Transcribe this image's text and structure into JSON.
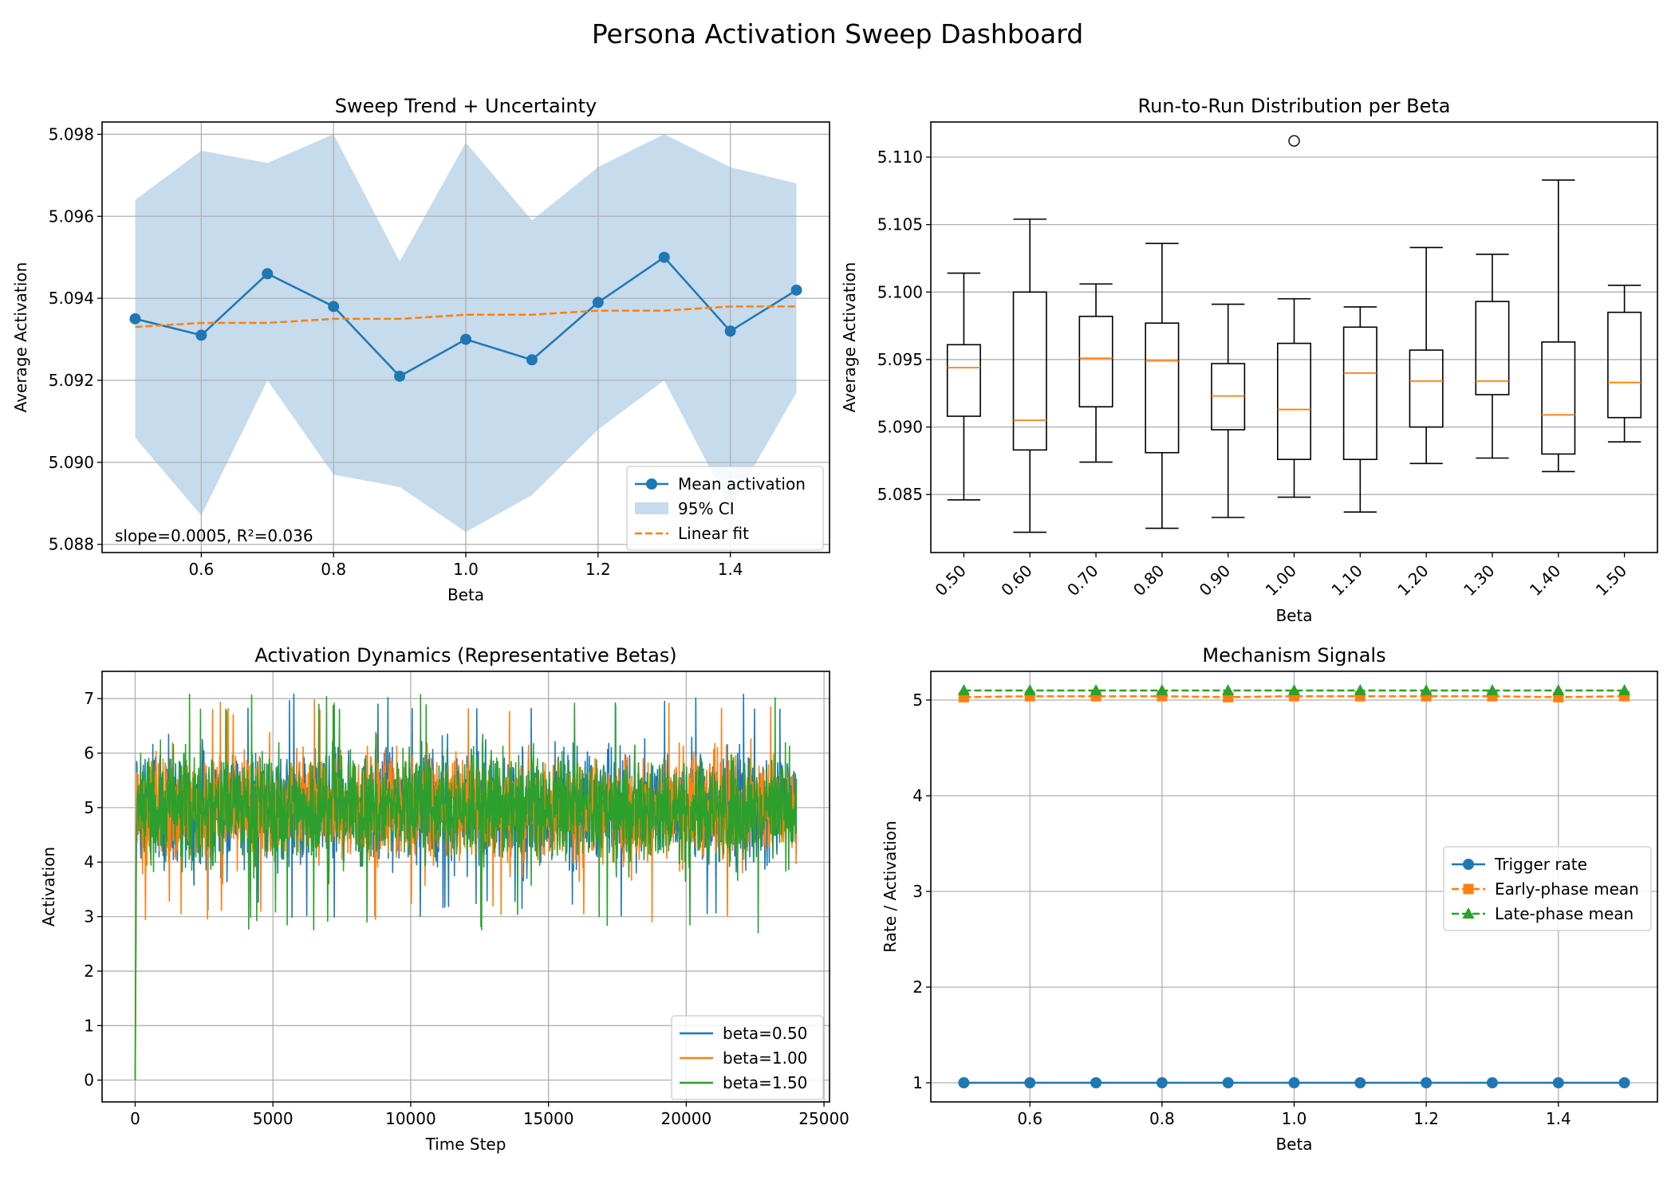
{
  "figure": {
    "title": "Persona Activation Sweep Dashboard"
  },
  "colors": {
    "blue": "#1f77b4",
    "orange": "#ff7f0e",
    "green": "#2ca02c",
    "ci_fill": "#c6dbec",
    "grid": "#b0b0b0"
  },
  "chart_data": [
    {
      "type": "line",
      "title": "Sweep Trend + Uncertainty",
      "xlabel": "Beta",
      "ylabel": "Average Activation",
      "xlim": [
        0.45,
        1.55
      ],
      "ylim": [
        5.0878,
        5.0983
      ],
      "xticks": [
        0.6,
        0.8,
        1.0,
        1.2,
        1.4
      ],
      "xticklabels": [
        "0.6",
        "0.8",
        "1.0",
        "1.2",
        "1.4"
      ],
      "yticks": [
        5.088,
        5.09,
        5.092,
        5.094,
        5.096,
        5.098
      ],
      "yticklabels": [
        "5.088",
        "5.090",
        "5.092",
        "5.094",
        "5.096",
        "5.098"
      ],
      "x": [
        0.5,
        0.6,
        0.7,
        0.8,
        0.9,
        1.0,
        1.1,
        1.2,
        1.3,
        1.4,
        1.5
      ],
      "series": [
        {
          "name": "Mean activation",
          "values": [
            5.0935,
            5.0931,
            5.0946,
            5.0938,
            5.0921,
            5.093,
            5.0925,
            5.0939,
            5.095,
            5.0932,
            5.0942
          ]
        },
        {
          "name": "Linear fit",
          "values": [
            5.0933,
            5.0934,
            5.0934,
            5.0935,
            5.0935,
            5.0936,
            5.0936,
            5.0937,
            5.0937,
            5.0938,
            5.0938
          ]
        }
      ],
      "ci": {
        "name": "95% CI",
        "lower": [
          5.0906,
          5.0887,
          5.092,
          5.0897,
          5.0894,
          5.0883,
          5.0892,
          5.0908,
          5.092,
          5.0889,
          5.0917
        ],
        "upper": [
          5.0964,
          5.0976,
          5.0973,
          5.098,
          5.0949,
          5.0978,
          5.0959,
          5.0972,
          5.098,
          5.0972,
          5.0968
        ]
      },
      "annotation": "slope=0.0005, R²=0.036",
      "legend": [
        "Mean activation",
        "95% CI",
        "Linear fit"
      ],
      "legend_position": "lower-right",
      "grid": true
    },
    {
      "type": "box",
      "title": "Run-to-Run Distribution per Beta",
      "xlabel": "Beta",
      "ylabel": "Average Activation",
      "ylim": [
        5.0807,
        5.1126
      ],
      "yticks": [
        5.085,
        5.09,
        5.095,
        5.1,
        5.105,
        5.11
      ],
      "yticklabels": [
        "5.085",
        "5.090",
        "5.095",
        "5.100",
        "5.105",
        "5.110"
      ],
      "categories": [
        "0.50",
        "0.60",
        "0.70",
        "0.80",
        "0.90",
        "1.00",
        "1.10",
        "1.20",
        "1.30",
        "1.40",
        "1.50"
      ],
      "boxes": [
        {
          "whislo": 5.0846,
          "q1": 5.0908,
          "med": 5.0944,
          "q3": 5.0961,
          "whishi": 5.1014,
          "fliers": []
        },
        {
          "whislo": 5.0822,
          "q1": 5.0883,
          "med": 5.0905,
          "q3": 5.1,
          "whishi": 5.1054,
          "fliers": []
        },
        {
          "whislo": 5.0874,
          "q1": 5.0915,
          "med": 5.0951,
          "q3": 5.0982,
          "whishi": 5.1006,
          "fliers": []
        },
        {
          "whislo": 5.0825,
          "q1": 5.0881,
          "med": 5.0949,
          "q3": 5.0977,
          "whishi": 5.1036,
          "fliers": []
        },
        {
          "whislo": 5.0833,
          "q1": 5.0898,
          "med": 5.0923,
          "q3": 5.0947,
          "whishi": 5.0991,
          "fliers": []
        },
        {
          "whislo": 5.0848,
          "q1": 5.0876,
          "med": 5.0913,
          "q3": 5.0962,
          "whishi": 5.0995,
          "fliers": [
            5.1112
          ]
        },
        {
          "whislo": 5.0837,
          "q1": 5.0876,
          "med": 5.094,
          "q3": 5.0974,
          "whishi": 5.0989,
          "fliers": []
        },
        {
          "whislo": 5.0873,
          "q1": 5.09,
          "med": 5.0934,
          "q3": 5.0957,
          "whishi": 5.1033,
          "fliers": []
        },
        {
          "whislo": 5.0877,
          "q1": 5.0924,
          "med": 5.0934,
          "q3": 5.0993,
          "whishi": 5.1028,
          "fliers": []
        },
        {
          "whislo": 5.0867,
          "q1": 5.088,
          "med": 5.0909,
          "q3": 5.0963,
          "whishi": 5.1083,
          "fliers": []
        },
        {
          "whislo": 5.0889,
          "q1": 5.0907,
          "med": 5.0933,
          "q3": 5.0985,
          "whishi": 5.1005,
          "fliers": []
        }
      ],
      "grid": true
    },
    {
      "type": "line",
      "title": "Activation Dynamics (Representative Betas)",
      "xlabel": "Time Step",
      "ylabel": "Activation",
      "xlim": [
        -1200,
        25200
      ],
      "ylim": [
        -0.4,
        7.5
      ],
      "xticks": [
        0,
        5000,
        10000,
        15000,
        20000,
        25000
      ],
      "xticklabels": [
        "0",
        "5000",
        "10000",
        "15000",
        "20000",
        "25000"
      ],
      "yticks": [
        0,
        1,
        2,
        3,
        4,
        5,
        6,
        7
      ],
      "yticklabels": [
        "0",
        "1",
        "2",
        "3",
        "4",
        "5",
        "6",
        "7"
      ],
      "x_range": [
        0,
        24000
      ],
      "series": [
        {
          "name": "beta=0.50",
          "start": 0,
          "mean": 5.09,
          "typical_low": 3.5,
          "typical_high": 6.5,
          "min_after_warmup": 2.9,
          "max": 7.1
        },
        {
          "name": "beta=1.00",
          "start": 0,
          "mean": 5.09,
          "typical_low": 3.5,
          "typical_high": 6.5,
          "min_after_warmup": 2.9,
          "max": 7.0
        },
        {
          "name": "beta=1.50",
          "start": 0,
          "mean": 5.09,
          "typical_low": 3.5,
          "typical_high": 6.5,
          "min_after_warmup": 2.7,
          "max": 7.1
        }
      ],
      "legend_position": "lower-right",
      "grid": true
    },
    {
      "type": "line",
      "title": "Mechanism Signals",
      "xlabel": "Beta",
      "ylabel": "Rate / Activation",
      "xlim": [
        0.45,
        1.55
      ],
      "ylim": [
        0.8,
        5.3
      ],
      "xticks": [
        0.6,
        0.8,
        1.0,
        1.2,
        1.4
      ],
      "xticklabels": [
        "0.6",
        "0.8",
        "1.0",
        "1.2",
        "1.4"
      ],
      "yticks": [
        1,
        2,
        3,
        4,
        5
      ],
      "yticklabels": [
        "1",
        "2",
        "3",
        "4",
        "5"
      ],
      "x": [
        0.5,
        0.6,
        0.7,
        0.8,
        0.9,
        1.0,
        1.1,
        1.2,
        1.3,
        1.4,
        1.5
      ],
      "series": [
        {
          "name": "Trigger rate",
          "marker": "circle",
          "style": "solid",
          "values": [
            1,
            1,
            1,
            1,
            1,
            1,
            1,
            1,
            1,
            1,
            1
          ]
        },
        {
          "name": "Early-phase mean",
          "marker": "square",
          "style": "dashed",
          "values": [
            5.03,
            5.04,
            5.04,
            5.04,
            5.03,
            5.04,
            5.04,
            5.04,
            5.04,
            5.03,
            5.04
          ]
        },
        {
          "name": "Late-phase mean",
          "marker": "triangle",
          "style": "dashed",
          "values": [
            5.1,
            5.1,
            5.1,
            5.1,
            5.1,
            5.1,
            5.1,
            5.1,
            5.1,
            5.1,
            5.1
          ]
        }
      ],
      "legend_position": "center-right",
      "grid": true
    }
  ]
}
